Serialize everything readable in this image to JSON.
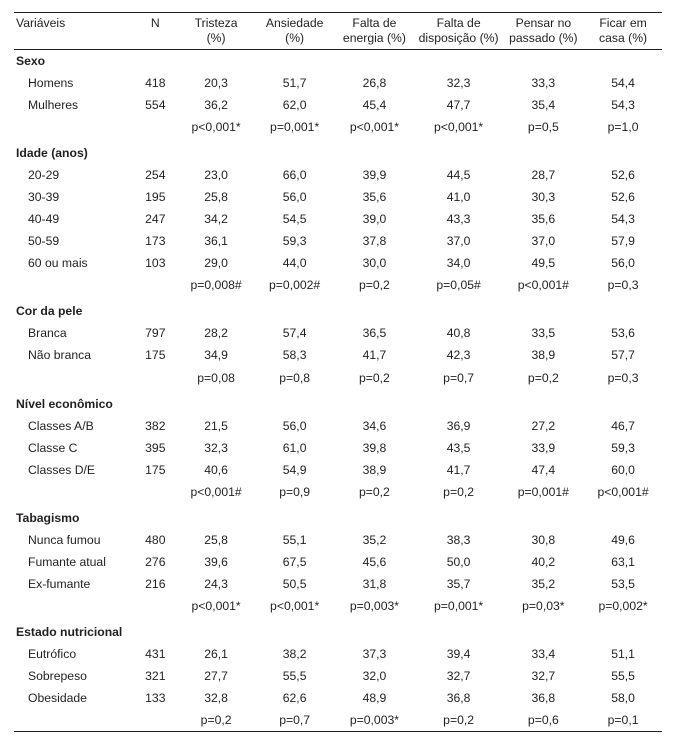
{
  "meta": {
    "type": "table",
    "background_color": "#ffffff",
    "text_color": "#231f20",
    "rule_color": "#231f20",
    "font_family": "Myriad Pro / sans-serif",
    "base_fontsize_pt": 9,
    "column_alignment": [
      "left",
      "center",
      "center",
      "center",
      "center",
      "center",
      "center",
      "center"
    ]
  },
  "columns": {
    "var": {
      "line1": "Variáveis",
      "line2": ""
    },
    "n": {
      "line1": "N",
      "line2": ""
    },
    "c1": {
      "line1": "Tristeza",
      "line2": "(%)"
    },
    "c2": {
      "line1": "Ansiedade",
      "line2": "(%)"
    },
    "c3": {
      "line1": "Falta de",
      "line2": "energia (%)"
    },
    "c4": {
      "line1": "Falta de",
      "line2": "disposição (%)"
    },
    "c5": {
      "line1": "Pensar no",
      "line2": "passado (%)"
    },
    "c6": {
      "line1": "Ficar em",
      "line2": "casa (%)"
    }
  },
  "sections": [
    {
      "title": "Sexo",
      "rows": [
        {
          "label": "Homens",
          "n": "418",
          "v": [
            "20,3",
            "51,7",
            "26,8",
            "32,3",
            "33,3",
            "54,4"
          ]
        },
        {
          "label": "Mulheres",
          "n": "554",
          "v": [
            "36,2",
            "62,0",
            "45,4",
            "47,7",
            "35,4",
            "54,3"
          ]
        }
      ],
      "pvals": [
        "p<0,001*",
        "p=0,001*",
        "p<0,001*",
        "p<0,001*",
        "p=0,5",
        "p=1,0"
      ]
    },
    {
      "title": "Idade (anos)",
      "rows": [
        {
          "label": "20-29",
          "n": "254",
          "v": [
            "23,0",
            "66,0",
            "39,9",
            "44,5",
            "28,7",
            "52,6"
          ]
        },
        {
          "label": "30-39",
          "n": "195",
          "v": [
            "25,8",
            "56,0",
            "35,6",
            "41,0",
            "30,3",
            "52,6"
          ]
        },
        {
          "label": "40-49",
          "n": "247",
          "v": [
            "34,2",
            "54,5",
            "39,0",
            "43,3",
            "35,6",
            "54,3"
          ]
        },
        {
          "label": "50-59",
          "n": "173",
          "v": [
            "36,1",
            "59,3",
            "37,8",
            "37,0",
            "37,0",
            "57,9"
          ]
        },
        {
          "label": "60 ou mais",
          "n": "103",
          "v": [
            "29,0",
            "44,0",
            "30,0",
            "34,0",
            "49,5",
            "56,0"
          ]
        }
      ],
      "pvals": [
        "p=0,008#",
        "p=0,002#",
        "p=0,2",
        "p=0,05#",
        "p<0,001#",
        "p=0,3"
      ]
    },
    {
      "title": "Cor da pele",
      "rows": [
        {
          "label": "Branca",
          "n": "797",
          "v": [
            "28,2",
            "57,4",
            "36,5",
            "40,8",
            "33,5",
            "53,6"
          ]
        },
        {
          "label": "Não branca",
          "n": "175",
          "v": [
            "34,9",
            "58,3",
            "41,7",
            "42,3",
            "38,9",
            "57,7"
          ]
        }
      ],
      "pvals": [
        "p=0,08",
        "p=0,8",
        "p=0,2",
        "p=0,7",
        "p=0,2",
        "p=0,3"
      ]
    },
    {
      "title": "Nível econômico",
      "rows": [
        {
          "label": "Classes A/B",
          "n": "382",
          "v": [
            "21,5",
            "56,0",
            "34,6",
            "36,9",
            "27,2",
            "46,7"
          ]
        },
        {
          "label": "Classe C",
          "n": "395",
          "v": [
            "32,3",
            "61,0",
            "39,8",
            "43,5",
            "33,9",
            "59,3"
          ]
        },
        {
          "label": "Classes D/E",
          "n": "175",
          "v": [
            "40,6",
            "54,9",
            "38,9",
            "41,7",
            "47,4",
            "60,0"
          ]
        }
      ],
      "pvals": [
        "p<0,001#",
        "p=0,9",
        "p=0,2",
        "p=0,2",
        "p=0,001#",
        "p<0,001#"
      ]
    },
    {
      "title": "Tabagismo",
      "rows": [
        {
          "label": "Nunca fumou",
          "n": "480",
          "v": [
            "25,8",
            "55,1",
            "35,2",
            "38,3",
            "30,8",
            "49,6"
          ]
        },
        {
          "label": "Fumante atual",
          "n": "276",
          "v": [
            "39,6",
            "67,5",
            "45,6",
            "50,0",
            "40,2",
            "63,1"
          ]
        },
        {
          "label": "Ex-fumante",
          "n": "216",
          "v": [
            "24,3",
            "50,5",
            "31,8",
            "35,7",
            "35,2",
            "53,5"
          ]
        }
      ],
      "pvals": [
        "p<0,001*",
        "p<0,001*",
        "p=0,003*",
        "p=0,001*",
        "p=0,03*",
        "p=0,002*"
      ]
    },
    {
      "title": "Estado nutricional",
      "rows": [
        {
          "label": "Eutrófico",
          "n": "431",
          "v": [
            "26,1",
            "38,2",
            "37,3",
            "39,4",
            "33,4",
            "51,1"
          ]
        },
        {
          "label": "Sobrepeso",
          "n": "321",
          "v": [
            "27,7",
            "55,5",
            "32,0",
            "32,7",
            "32,7",
            "55,5"
          ]
        },
        {
          "label": "Obesidade",
          "n": "133",
          "v": [
            "32,8",
            "62,6",
            "48,9",
            "36,8",
            "36,8",
            "58,0"
          ]
        }
      ],
      "pvals": [
        "p=0,2",
        "p=0,7",
        "p=0,003*",
        "p=0,2",
        "p=0,6",
        "p=0,1"
      ]
    }
  ]
}
